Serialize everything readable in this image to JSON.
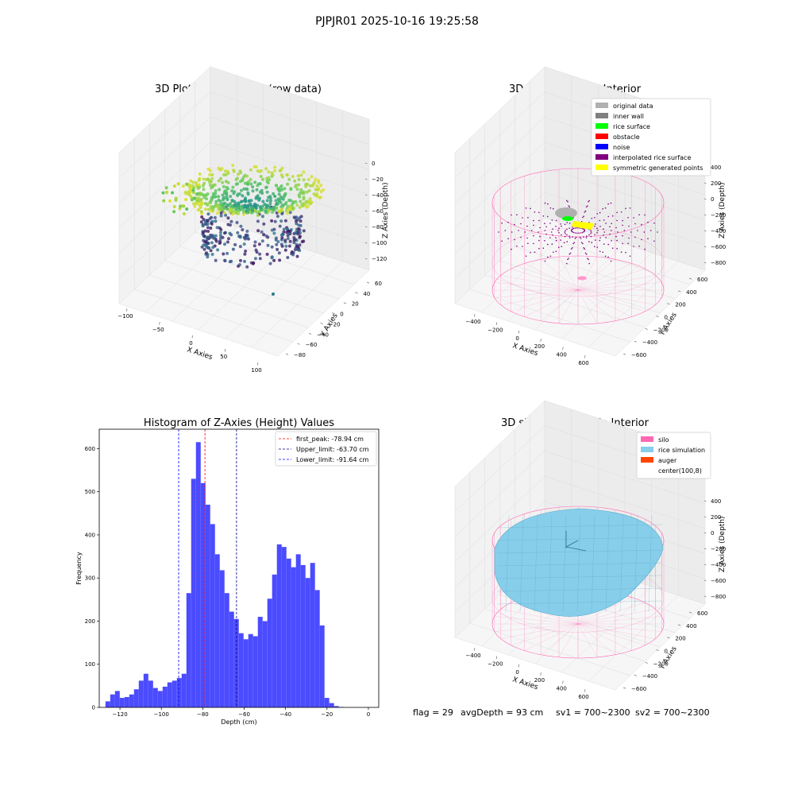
{
  "suptitle": "PJPJR01 2025-10-16 19:25:58",
  "status_line": {
    "flag": "flag = 29",
    "avg_depth": "avgDepth = 93 cm",
    "sv1": "sv1 = 700~2300",
    "sv2": "sv2 = 700~2300"
  },
  "colors": {
    "grey_light": "#b0b0b0",
    "grey_dark": "#808080",
    "green": "#00ff00",
    "red": "#ff0000",
    "blue": "#0000ff",
    "purple": "#800080",
    "yellow": "#ffff00",
    "pink": "#ff69b4",
    "sky": "#87ceeb",
    "orange": "#ff4500",
    "hist_bar": "#4b4bff"
  },
  "chart_data": [
    {
      "type": "scatter",
      "title": "3D Plot of Silo Interior(row data)",
      "xlabel": "X Axies",
      "ylabel": "Y Axies",
      "zlabel": "Z Axies (Depth)",
      "xticks": [
        "−100",
        "−50",
        "0",
        "50",
        "100"
      ],
      "yticks": [
        "−80",
        "−60",
        "−40",
        "−20",
        "0",
        "20",
        "40",
        "60"
      ],
      "zticks": [
        "0",
        "−20",
        "−40",
        "−60",
        "−80",
        "−100",
        "−120"
      ],
      "colormap": "viridis"
    },
    {
      "type": "scatter",
      "title": "3D classify of Silo Interior",
      "xlabel": "X Axies",
      "ylabel": "Y Axies",
      "zlabel": "Z Axies (Depth)",
      "xticks": [
        "−400",
        "−200",
        "0",
        "200",
        "400",
        "600"
      ],
      "yticks": [
        "−600",
        "−400",
        "−200",
        "0",
        "200",
        "400",
        "600"
      ],
      "zticks": [
        "400",
        "200",
        "0",
        "−200",
        "−400",
        "−600",
        "−800"
      ],
      "legend": [
        {
          "name": "original data",
          "color": "#b0b0b0"
        },
        {
          "name": "inner wall",
          "color": "#808080"
        },
        {
          "name": "rice surface",
          "color": "#00ff00"
        },
        {
          "name": "obstacle",
          "color": "#ff0000"
        },
        {
          "name": "noise",
          "color": "#0000ff"
        },
        {
          "name": "interpolated rice surface",
          "color": "#800080"
        },
        {
          "name": "symmetric generated points",
          "color": "#ffff00"
        }
      ],
      "legend_position": "top-right"
    },
    {
      "type": "bar",
      "title": "Histogram of Z-Axies (Height) Values",
      "xlabel": "Depth (cm)",
      "ylabel": "Frequency",
      "xlim": [
        -130,
        5
      ],
      "ylim": [
        0,
        645
      ],
      "xticks": [
        -120,
        -100,
        -80,
        -60,
        -40,
        -20,
        0
      ],
      "yticks": [
        0,
        100,
        200,
        300,
        400,
        500,
        600
      ],
      "bin_start": -127,
      "bin_width": 2.3,
      "values": [
        14,
        30,
        38,
        22,
        24,
        30,
        42,
        62,
        78,
        62,
        45,
        38,
        48,
        58,
        62,
        68,
        78,
        265,
        530,
        615,
        520,
        470,
        425,
        355,
        318,
        265,
        222,
        205,
        172,
        158,
        170,
        165,
        210,
        200,
        252,
        308,
        378,
        372,
        345,
        325,
        355,
        330,
        300,
        335,
        272,
        190,
        22,
        10,
        3,
        1
      ],
      "vlines": [
        {
          "x": -78.94,
          "label": "first_peak: -78.94 cm",
          "color": "#ff0000"
        },
        {
          "x": -63.7,
          "label": "Upper_limit: -63.70 cm",
          "color": "#00008b"
        },
        {
          "x": -91.64,
          "label": "Lower_limit: -91.64 cm",
          "color": "#0000ff"
        }
      ],
      "legend_position": "top-right"
    },
    {
      "type": "area",
      "title": "3D simulation of Silo Interior",
      "xlabel": "X Axies",
      "ylabel": "Y Axies",
      "zlabel": "Z Axies (Depth)",
      "xticks": [
        "−400",
        "−200",
        "0",
        "200",
        "400",
        "600"
      ],
      "yticks": [
        "−600",
        "−400",
        "−200",
        "0",
        "200",
        "400",
        "600"
      ],
      "zticks": [
        "400",
        "200",
        "0",
        "−200",
        "−400",
        "−600",
        "−800"
      ],
      "legend": [
        {
          "name": "silo",
          "color": "#ff69b4"
        },
        {
          "name": "rice simulation",
          "color": "#87ceeb"
        },
        {
          "name": "auger",
          "color": "#ff4500"
        },
        {
          "name": "center(100,8)",
          "color": ""
        }
      ],
      "legend_position": "top-right"
    }
  ]
}
